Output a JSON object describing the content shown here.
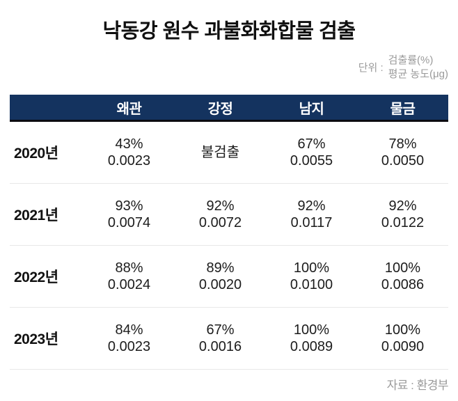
{
  "title": "낙동강 원수 과불화화합물 검출",
  "unit": {
    "label": "단위 :",
    "line1": "검출률(%)",
    "line2": "평균 농도(μg)"
  },
  "source": "자료 : 환경부",
  "colors": {
    "header_bg": "#14335f",
    "header_text": "#ffffff",
    "header_underline": "#0b0b10",
    "row_divider": "#e8e8e8",
    "muted_text": "#9a9a9a",
    "body_text": "#1c1c1c"
  },
  "table": {
    "columns": [
      "왜관",
      "강정",
      "남지",
      "물금"
    ],
    "rows": [
      {
        "year": "2020년",
        "cells": [
          {
            "rate": "43%",
            "conc": "0.0023"
          },
          {
            "rate": "불검출",
            "conc": ""
          },
          {
            "rate": "67%",
            "conc": "0.0055"
          },
          {
            "rate": "78%",
            "conc": "0.0050"
          }
        ]
      },
      {
        "year": "2021년",
        "cells": [
          {
            "rate": "93%",
            "conc": "0.0074"
          },
          {
            "rate": "92%",
            "conc": "0.0072"
          },
          {
            "rate": "92%",
            "conc": "0.0117"
          },
          {
            "rate": "92%",
            "conc": "0.0122"
          }
        ]
      },
      {
        "year": "2022년",
        "cells": [
          {
            "rate": "88%",
            "conc": "0.0024"
          },
          {
            "rate": "89%",
            "conc": "0.0020"
          },
          {
            "rate": "100%",
            "conc": "0.0100"
          },
          {
            "rate": "100%",
            "conc": "0.0086"
          }
        ]
      },
      {
        "year": "2023년",
        "cells": [
          {
            "rate": "84%",
            "conc": "0.0023"
          },
          {
            "rate": "67%",
            "conc": "0.0016"
          },
          {
            "rate": "100%",
            "conc": "0.0089"
          },
          {
            "rate": "100%",
            "conc": "0.0090"
          }
        ]
      }
    ]
  },
  "chart_data": {
    "type": "table",
    "title": "낙동강 원수 과불화화합물 검출",
    "units": [
      "검출률(%)",
      "평균 농도(μg)"
    ],
    "columns": [
      "왜관",
      "강정",
      "남지",
      "물금"
    ],
    "row_labels": [
      "2020년",
      "2021년",
      "2022년",
      "2023년"
    ],
    "detection_rate_percent": [
      [
        43,
        null,
        67,
        78
      ],
      [
        93,
        92,
        92,
        92
      ],
      [
        88,
        89,
        100,
        100
      ],
      [
        84,
        67,
        100,
        100
      ]
    ],
    "avg_concentration_ug": [
      [
        0.0023,
        null,
        0.0055,
        0.005
      ],
      [
        0.0074,
        0.0072,
        0.0117,
        0.0122
      ],
      [
        0.0024,
        0.002,
        0.01,
        0.0086
      ],
      [
        0.0023,
        0.0016,
        0.0089,
        0.009
      ]
    ],
    "not_detected_cells": [
      {
        "row": "2020년",
        "column": "강정",
        "label": "불검출"
      }
    ],
    "source": "자료 : 환경부"
  }
}
